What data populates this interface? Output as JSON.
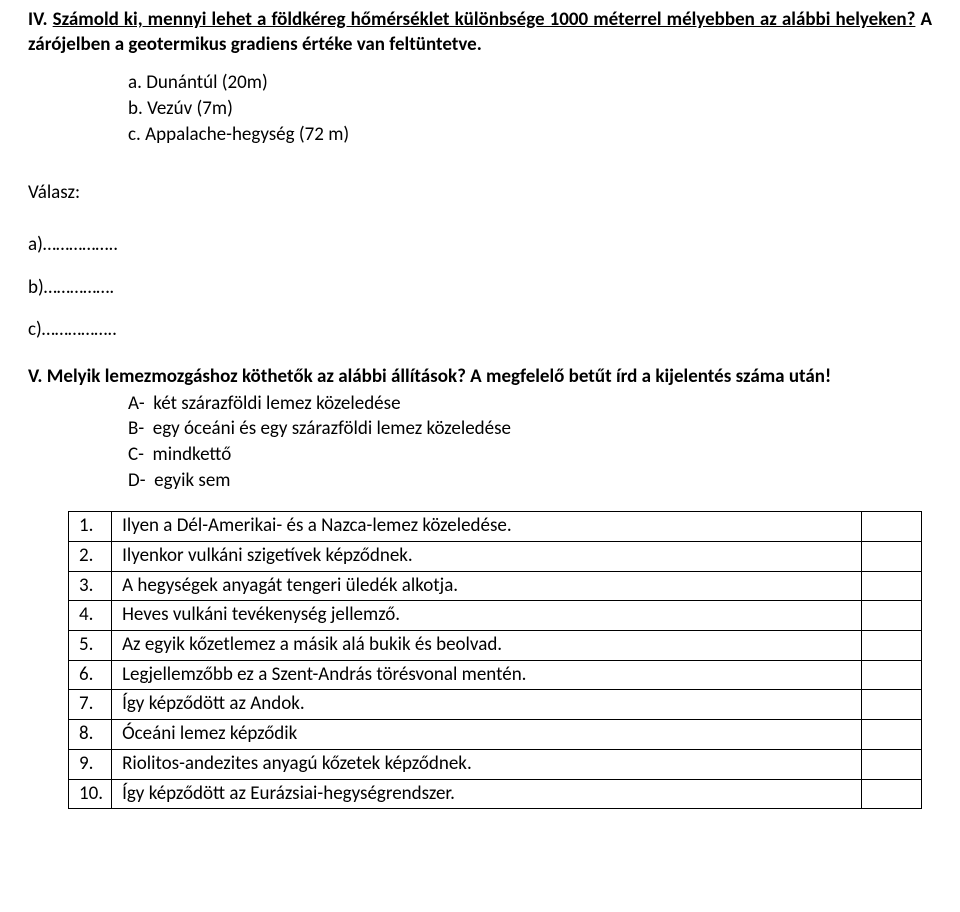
{
  "heading": {
    "prefix": "IV. ",
    "main": "Számold ki, mennyi lehet a földkéreg hőmérséklet különbsége 1000 méterrel mélyebben az alábbi helyeken?",
    "suffix": " A zárójelben a geotermikus gradiens értéke van feltüntetve."
  },
  "items": {
    "a": {
      "letter": "a.",
      "text": "Dunántúl (20m)"
    },
    "b": {
      "letter": "b.",
      "text": "Vezúv (7m)"
    },
    "c": {
      "letter": "c.",
      "text": "Appalache-hegység (72 m)"
    }
  },
  "answer": {
    "label": "Válasz:",
    "lines": {
      "a": "a)……………..",
      "b": "b)…………….",
      "c": "c)…………….."
    }
  },
  "sectionV": {
    "heading": "V. Melyik lemezmozgáshoz köthetők az alábbi állítások? A megfelelő betűt írd a kijelentés száma után!",
    "options": {
      "A": {
        "letter": "A-",
        "text": "két szárazföldi lemez közeledése"
      },
      "B": {
        "letter": "B-",
        "text": "egy óceáni és egy szárazföldi lemez közeledése"
      },
      "C": {
        "letter": "C-",
        "text": "mindkettő"
      },
      "D": {
        "letter": "D-",
        "text": "egyik sem"
      }
    }
  },
  "table": {
    "rows": [
      {
        "n": "1.",
        "text": "Ilyen a Dél-Amerikai- és a Nazca-lemez közeledése."
      },
      {
        "n": "2.",
        "text": "Ilyenkor vulkáni szigetívek képződnek."
      },
      {
        "n": "3.",
        "text": "A hegységek anyagát tengeri üledék alkotja."
      },
      {
        "n": "4.",
        "text": "Heves vulkáni tevékenység jellemző."
      },
      {
        "n": "5.",
        "text": "Az egyik kőzetlemez a másik alá bukik és beolvad."
      },
      {
        "n": "6.",
        "text": "Legjellemzőbb ez a Szent-András törésvonal mentén."
      },
      {
        "n": "7.",
        "text": "Így képződött az Andok."
      },
      {
        "n": "8.",
        "text": "Óceáni lemez képződik"
      },
      {
        "n": "9.",
        "text": "Riolitos-andezites anyagú kőzetek képződnek."
      },
      {
        "n": "10.",
        "text": "Így képződött az Eurázsiai-hegységrendszer."
      }
    ]
  }
}
